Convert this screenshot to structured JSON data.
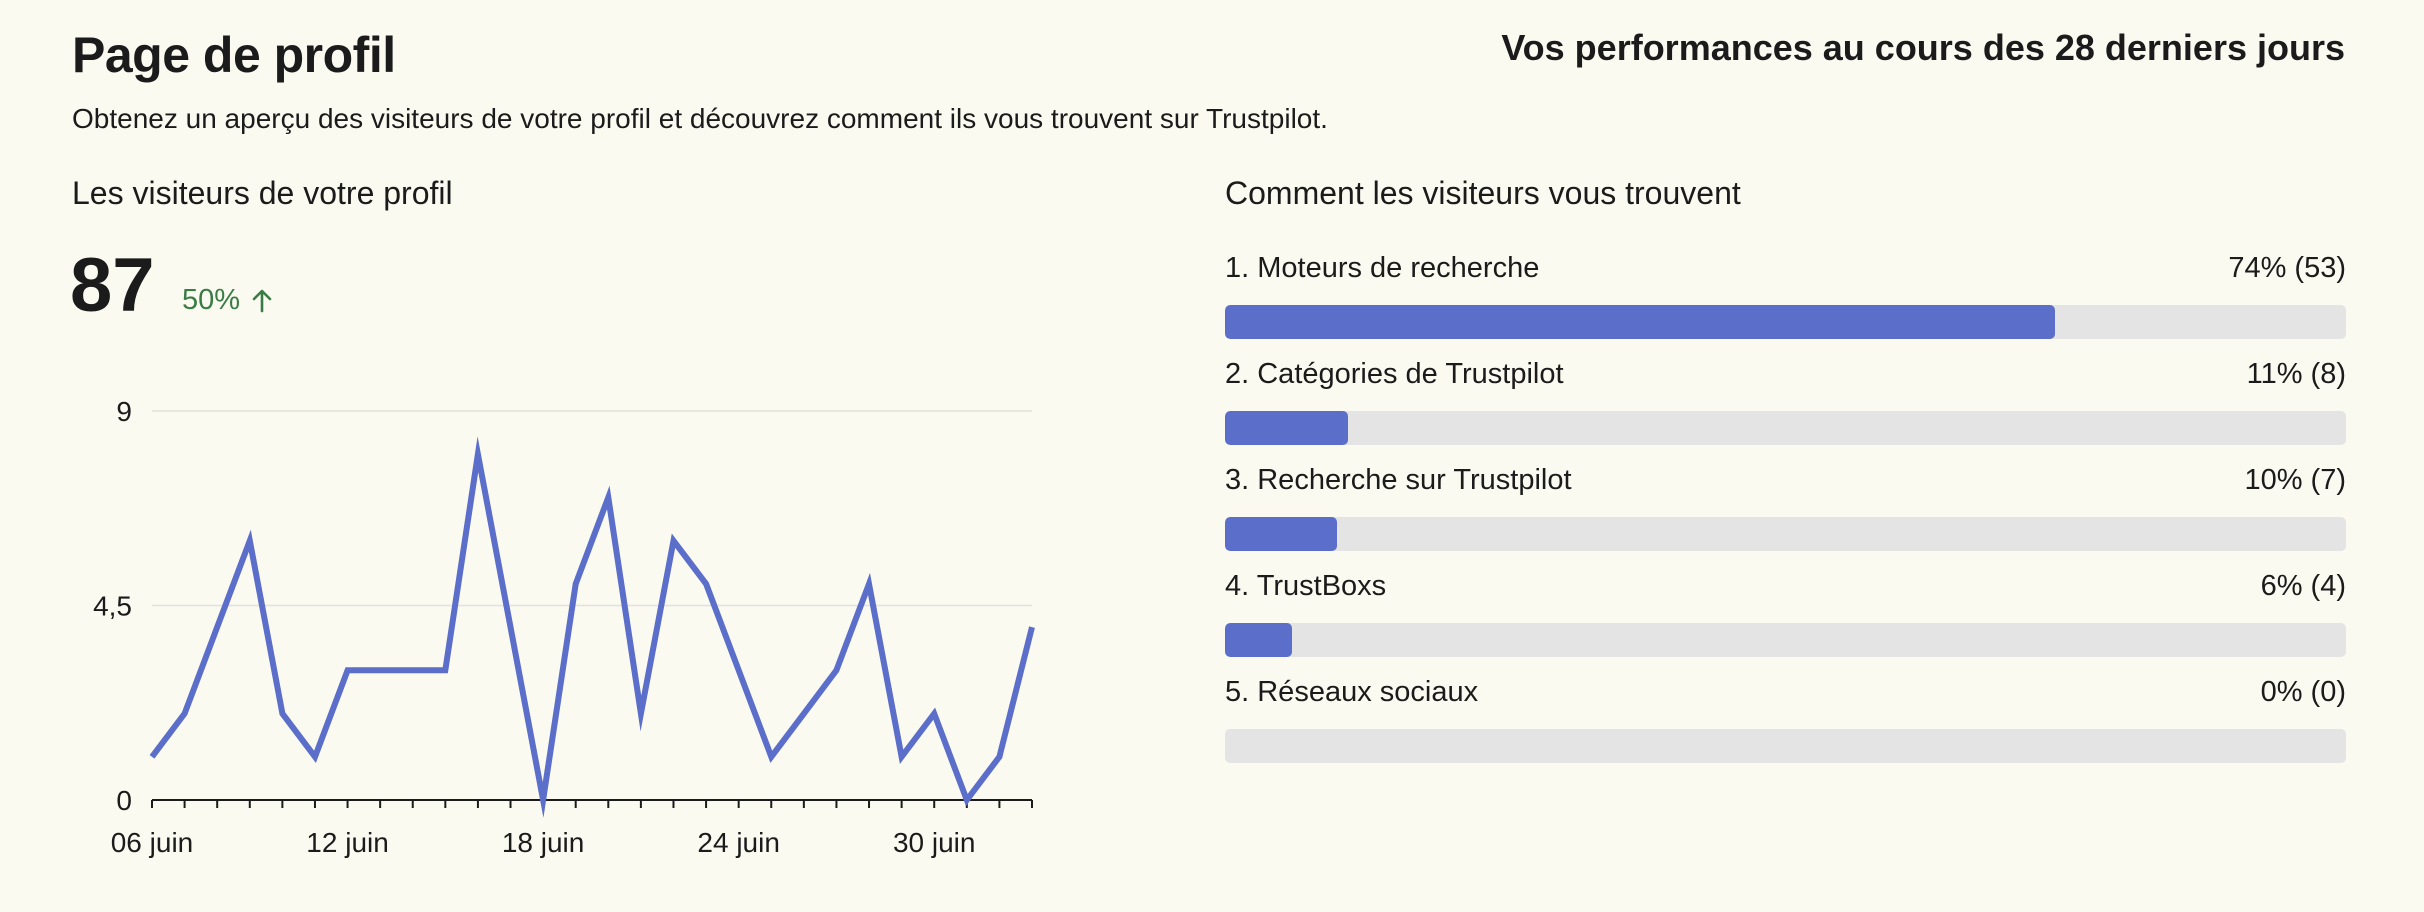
{
  "header": {
    "title": "Page de profil",
    "period": "Vos performances au cours des 28 derniers jours",
    "subtitle": "Obtenez un aperçu des visiteurs de votre profil et découvrez comment ils vous trouvent sur Trustpilot."
  },
  "visitors": {
    "title": "Les visiteurs de votre profil",
    "total": "87",
    "change": "50%",
    "trend_direction": "up",
    "trend_color": "#3a7d44"
  },
  "chart_data": {
    "type": "line",
    "line_color": "#5b6ec9",
    "grid": true,
    "ylim": [
      0,
      9
    ],
    "y_ticks": [
      "0",
      "4,5",
      "9"
    ],
    "x_tick_labels": [
      "06 juin",
      "12 juin",
      "18 juin",
      "24 juin",
      "30 juin"
    ],
    "x": [
      "06 juin",
      "07 juin",
      "08 juin",
      "09 juin",
      "10 juin",
      "11 juin",
      "12 juin",
      "13 juin",
      "14 juin",
      "15 juin",
      "16 juin",
      "17 juin",
      "18 juin",
      "19 juin",
      "20 juin",
      "21 juin",
      "22 juin",
      "23 juin",
      "24 juin",
      "25 juin",
      "26 juin",
      "27 juin",
      "28 juin",
      "29 juin",
      "30 juin",
      "01 juil",
      "02 juil",
      "03 juil"
    ],
    "values": [
      1,
      2,
      4,
      6,
      2,
      1,
      3,
      3,
      3,
      3,
      8,
      4,
      0,
      5,
      7,
      2,
      6,
      5,
      3,
      1,
      2,
      3,
      5,
      1,
      2,
      0,
      1,
      4
    ]
  },
  "sources": {
    "title": "Comment les visiteurs vous trouvent",
    "bar_color": "#5b6ec9",
    "track_color": "#e4e4e4",
    "items": [
      {
        "label": "1. Moteurs de recherche",
        "value": "74% (53)",
        "percent": 74
      },
      {
        "label": "2. Catégories de Trustpilot",
        "value": "11% (8)",
        "percent": 11
      },
      {
        "label": "3. Recherche sur Trustpilot",
        "value": "10% (7)",
        "percent": 10
      },
      {
        "label": "4. TrustBoxs",
        "value": "6% (4)",
        "percent": 6
      },
      {
        "label": "5. Réseaux sociaux",
        "value": "0% (0)",
        "percent": 0
      }
    ]
  }
}
